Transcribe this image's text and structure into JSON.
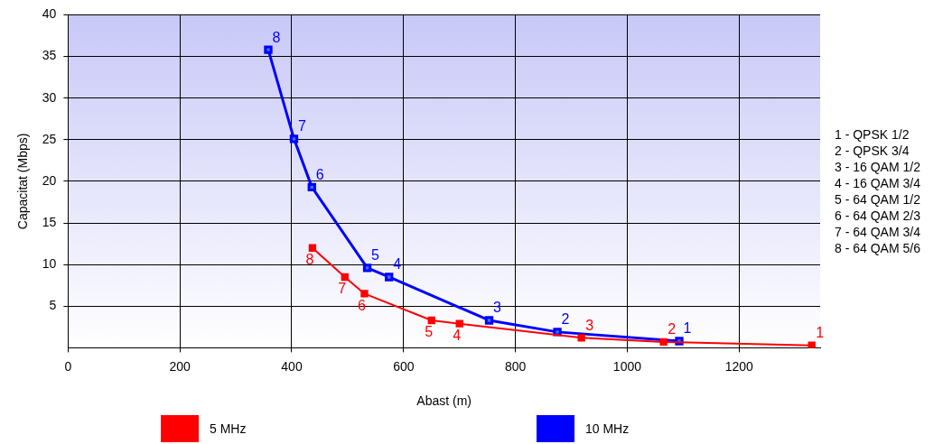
{
  "chart_data": {
    "type": "line",
    "xlabel": "Abast (m)",
    "ylabel": "Capacitat (Mbps)",
    "xlim": [
      0,
      1345
    ],
    "xticks": [
      0,
      200,
      400,
      600,
      800,
      1000,
      1200
    ],
    "ylim": [
      0,
      40
    ],
    "yticks": [
      5,
      10,
      15,
      20,
      25,
      30,
      35,
      40
    ],
    "grid": true,
    "legend": "bottom",
    "marker": "square",
    "line_style": "solid",
    "series": [
      {
        "name": "5 MHz",
        "color": "#ff0000",
        "x": [
          1330,
          1065,
          918,
          700,
          650,
          530,
          495,
          437
        ],
        "values": [
          0.3,
          0.7,
          1.2,
          2.9,
          3.3,
          6.5,
          8.5,
          12.0
        ]
      },
      {
        "name": "10 MHz",
        "color": "#0000ff",
        "x": [
          1093,
          875,
          753,
          574,
          535,
          436,
          404,
          358
        ],
        "values": [
          0.8,
          1.9,
          3.3,
          8.5,
          9.6,
          19.3,
          25.1,
          35.8
        ]
      }
    ],
    "annotations": [
      {
        "text": "1",
        "x": 1330,
        "y": 0.3
      },
      {
        "text": "2",
        "x": 1065,
        "y": 0.7
      },
      {
        "text": "3",
        "x": 918,
        "y": 1.2
      },
      {
        "text": "4",
        "x": 700,
        "y": 2.9
      },
      {
        "text": "5",
        "x": 650,
        "y": 3.3
      },
      {
        "text": "6",
        "x": 530,
        "y": 6.5
      },
      {
        "text": "7",
        "x": 495,
        "y": 8.5
      },
      {
        "text": "8",
        "x": 437,
        "y": 12.0
      },
      {
        "text": "1",
        "x": 1093,
        "y": 0.8
      },
      {
        "text": "2",
        "x": 875,
        "y": 1.9
      },
      {
        "text": "3",
        "x": 753,
        "y": 3.3
      },
      {
        "text": "4",
        "x": 574,
        "y": 8.5
      },
      {
        "text": "5",
        "x": 535,
        "y": 9.6
      },
      {
        "text": "6",
        "x": 436,
        "y": 19.3
      },
      {
        "text": "7",
        "x": 404,
        "y": 25.1
      },
      {
        "text": "8",
        "x": 358,
        "y": 35.8
      },
      "1 - QPSK 1/2",
      "2 - QPSK 3/4",
      "3 - 16 QAM 1/2",
      "4 - 16 QAM 3/4",
      "5 - 64 QAM 1/2",
      "6 - 64 QAM 2/3",
      "7 - 64 QAM 3/4",
      "8 - 64 QAM 5/6"
    ]
  }
}
